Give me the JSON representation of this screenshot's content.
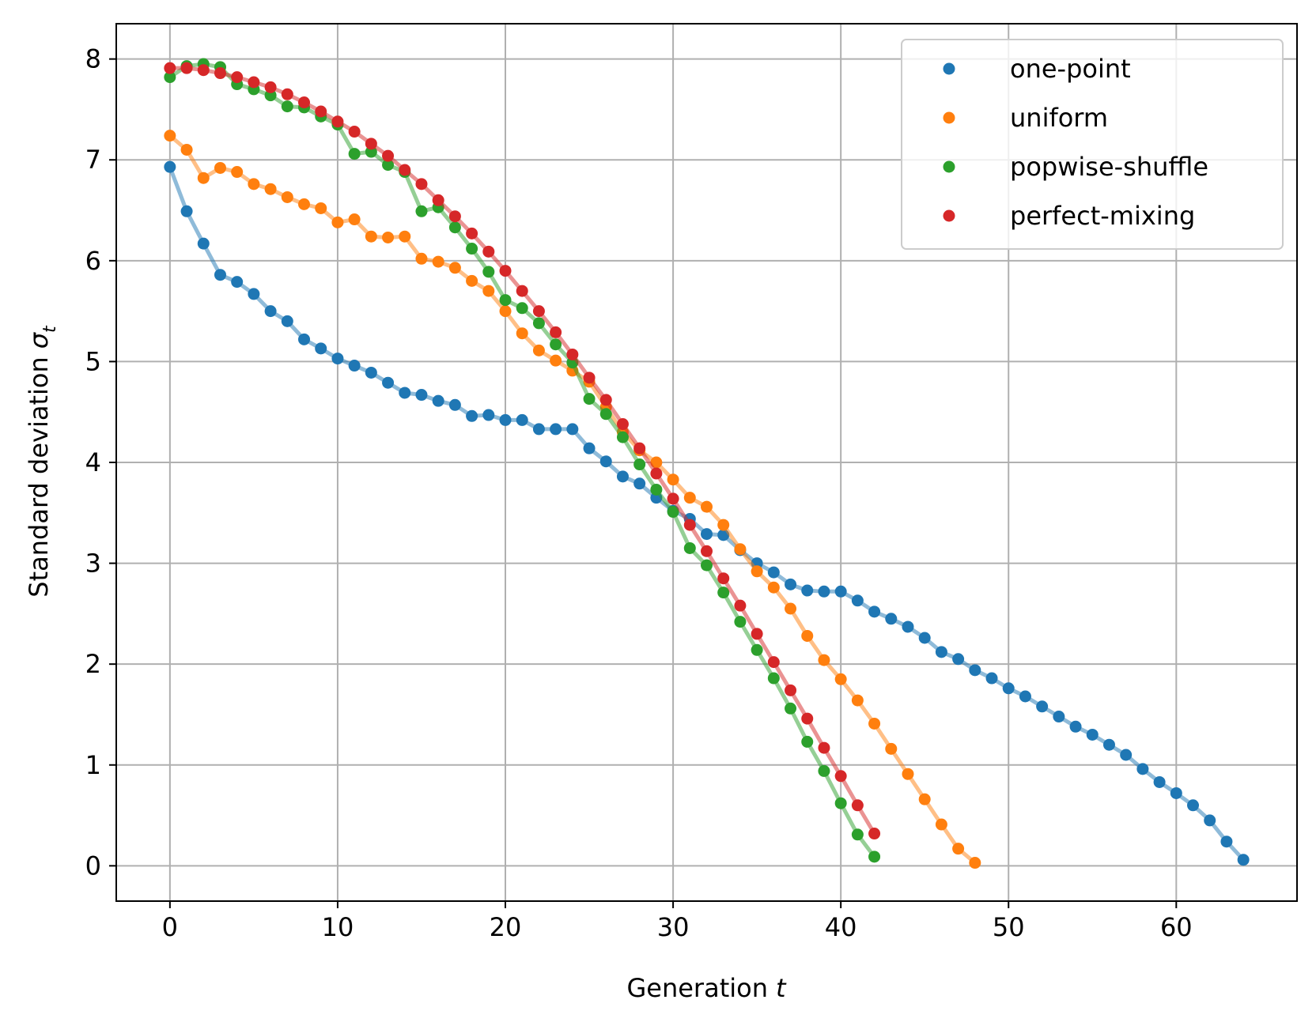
{
  "chart_data": {
    "type": "line",
    "xlabel": "Generation",
    "xlabel_var": "t",
    "ylabel": "Standard deviation",
    "ylabel_var": "σ",
    "ylabel_sub": "t",
    "xlim": [
      -3.2,
      67.2
    ],
    "ylim": [
      -0.35,
      8.35
    ],
    "xticks": [
      0,
      10,
      20,
      30,
      40,
      50,
      60
    ],
    "yticks": [
      0,
      1,
      2,
      3,
      4,
      5,
      6,
      7,
      8
    ],
    "grid": true,
    "legend_position": "top-right",
    "series": [
      {
        "name": "one-point",
        "color": "#1f77b4",
        "values": [
          6.93,
          6.49,
          6.17,
          5.86,
          5.79,
          5.67,
          5.5,
          5.4,
          5.22,
          5.13,
          5.03,
          4.96,
          4.89,
          4.79,
          4.69,
          4.67,
          4.61,
          4.57,
          4.46,
          4.47,
          4.42,
          4.42,
          4.33,
          4.33,
          4.33,
          4.14,
          4.01,
          3.86,
          3.79,
          3.65,
          3.52,
          3.44,
          3.29,
          3.28,
          3.13,
          3.0,
          2.91,
          2.79,
          2.73,
          2.72,
          2.72,
          2.63,
          2.52,
          2.45,
          2.37,
          2.26,
          2.12,
          2.05,
          1.94,
          1.86,
          1.76,
          1.68,
          1.58,
          1.48,
          1.38,
          1.3,
          1.2,
          1.1,
          0.96,
          0.83,
          0.72,
          0.6,
          0.45,
          0.24,
          0.06
        ]
      },
      {
        "name": "uniform",
        "color": "#ff7f0e",
        "values": [
          7.24,
          7.1,
          6.82,
          6.92,
          6.88,
          6.76,
          6.71,
          6.63,
          6.56,
          6.52,
          6.38,
          6.41,
          6.24,
          6.23,
          6.24,
          6.02,
          5.99,
          5.93,
          5.8,
          5.7,
          5.5,
          5.28,
          5.11,
          5.01,
          4.91,
          4.8,
          4.55,
          4.3,
          4.12,
          4.0,
          3.83,
          3.65,
          3.56,
          3.38,
          3.14,
          2.92,
          2.76,
          2.55,
          2.28,
          2.04,
          1.85,
          1.64,
          1.41,
          1.16,
          0.91,
          0.66,
          0.41,
          0.17,
          0.03
        ]
      },
      {
        "name": "popwise-shuffle",
        "color": "#2ca02c",
        "values": [
          7.82,
          7.93,
          7.95,
          7.92,
          7.75,
          7.7,
          7.64,
          7.53,
          7.52,
          7.43,
          7.35,
          7.06,
          7.08,
          6.95,
          6.88,
          6.49,
          6.53,
          6.33,
          6.12,
          5.89,
          5.61,
          5.53,
          5.38,
          5.17,
          4.99,
          4.63,
          4.48,
          4.25,
          3.98,
          3.73,
          3.51,
          3.15,
          2.98,
          2.71,
          2.42,
          2.14,
          1.86,
          1.56,
          1.23,
          0.94,
          0.62,
          0.31,
          0.09
        ]
      },
      {
        "name": "perfect-mixing",
        "color": "#d62728",
        "values": [
          7.91,
          7.91,
          7.89,
          7.86,
          7.82,
          7.77,
          7.72,
          7.65,
          7.57,
          7.48,
          7.38,
          7.28,
          7.16,
          7.04,
          6.9,
          6.76,
          6.6,
          6.44,
          6.27,
          6.09,
          5.9,
          5.7,
          5.5,
          5.29,
          5.07,
          4.84,
          4.62,
          4.38,
          4.14,
          3.89,
          3.64,
          3.38,
          3.12,
          2.85,
          2.58,
          2.3,
          2.02,
          1.74,
          1.46,
          1.17,
          0.89,
          0.6,
          0.32
        ]
      }
    ]
  }
}
